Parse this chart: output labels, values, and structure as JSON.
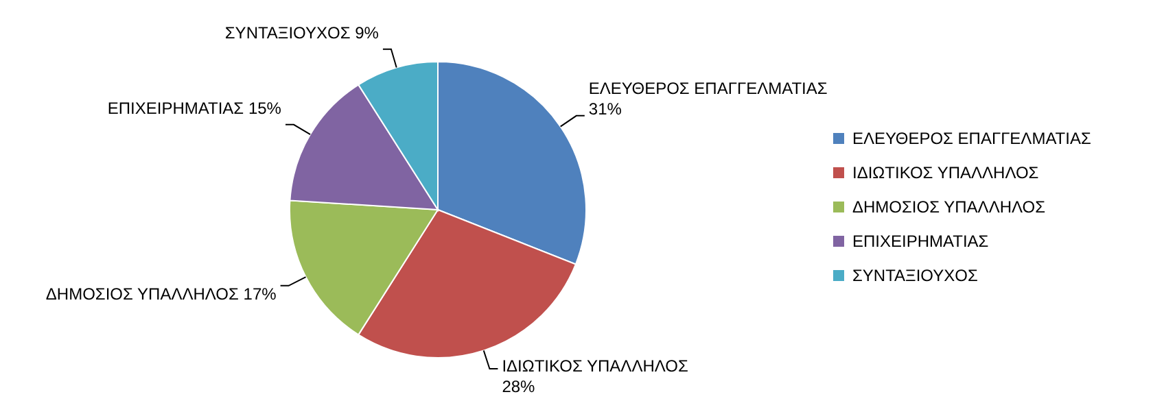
{
  "chart_data": {
    "type": "pie",
    "categories": [
      "ΕΛΕΥΘΕΡΟΣ ΕΠΑΓΓΕΛΜΑΤΙΑΣ",
      "ΙΔΙΩΤΙΚΟΣ ΥΠΑΛΛΗΛΟΣ",
      "ΔΗΜΟΣΙΟΣ ΥΠΑΛΛΗΛΟΣ",
      "ΕΠΙΧΕΙΡΗΜΑΤΙΑΣ",
      "ΣΥΝΤΑΞΙΟΥΧΟΣ"
    ],
    "values": [
      31,
      28,
      17,
      15,
      9
    ],
    "colors": [
      "#4f81bd",
      "#c0504d",
      "#9bbb59",
      "#8064a2",
      "#4bacc6"
    ],
    "value_labels": [
      "31%",
      "28%",
      "17%",
      "15%",
      "9%"
    ],
    "legend": "right"
  }
}
